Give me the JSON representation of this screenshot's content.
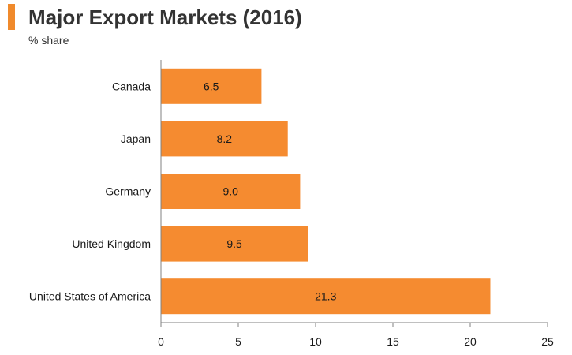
{
  "header": {
    "title": "Major Export Markets (2016)",
    "subtitle": "% share"
  },
  "colors": {
    "accent": "#f08a2c",
    "bar": "#f58b30",
    "axis": "#808080",
    "text": "#1a1a1a"
  },
  "chart_data": {
    "type": "bar",
    "orientation": "horizontal",
    "title": "Major Export Markets (2016)",
    "subtitle": "% share",
    "categories": [
      "Canada",
      "Japan",
      "Germany",
      "United Kingdom",
      "United States of America"
    ],
    "values": [
      6.5,
      8.2,
      9.0,
      9.5,
      21.3
    ],
    "value_labels": [
      "6.5",
      "8.2",
      "9.0",
      "9.5",
      "21.3"
    ],
    "xlabel": "",
    "ylabel": "",
    "xlim": [
      0,
      25
    ],
    "xticks": [
      0,
      5,
      10,
      15,
      20,
      25
    ],
    "grid": false
  }
}
